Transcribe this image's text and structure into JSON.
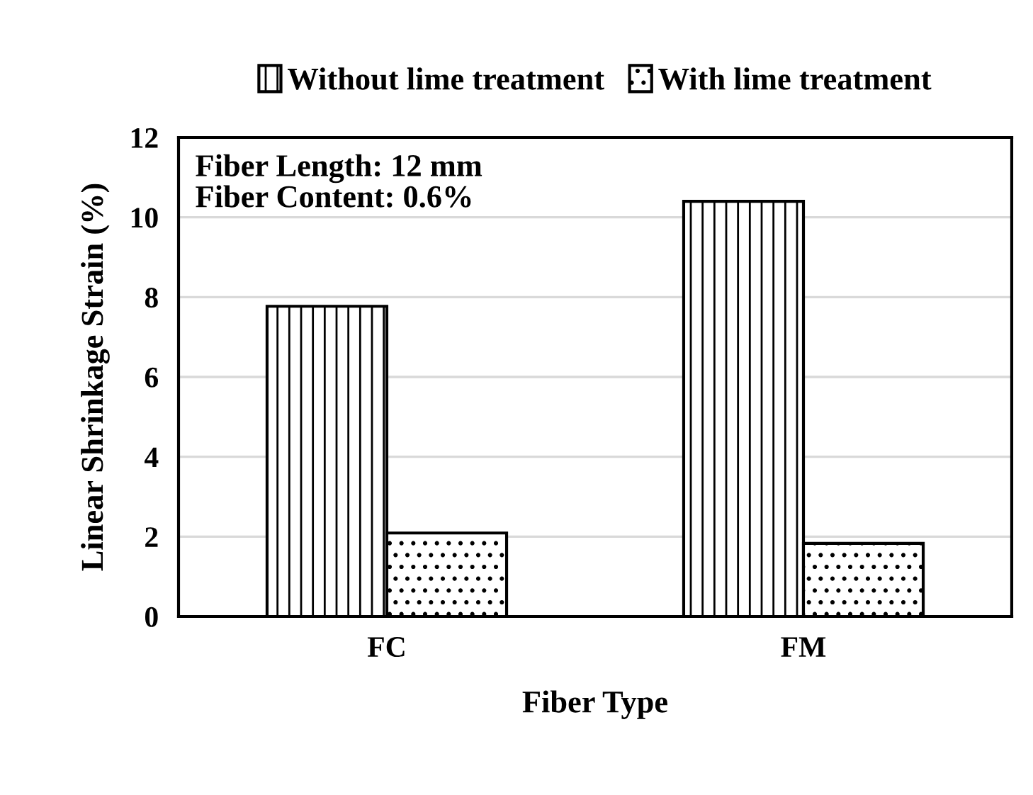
{
  "chart_data": {
    "type": "bar",
    "xlabel": "Fiber Type",
    "ylabel": "Linear Shrinkage Strain (%)",
    "categories": [
      "FC",
      "FM"
    ],
    "series": [
      {
        "name": "Without lime treatment",
        "color": "#000000",
        "values": [
          7.77,
          10.4
        ]
      },
      {
        "name": "With lime treatment",
        "color": "#000000",
        "values": [
          2.09,
          1.83
        ]
      }
    ],
    "ylim": [
      0,
      12
    ],
    "yticks": [
      0,
      2,
      4,
      6,
      8,
      10,
      12
    ],
    "grid": "y",
    "legend": "top",
    "annotations": [
      "Fiber Length: 12 mm\nFiber Content: 0.6%"
    ]
  }
}
